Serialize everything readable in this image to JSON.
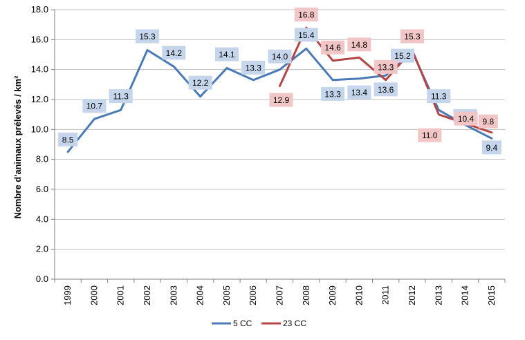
{
  "chart_data": {
    "type": "line",
    "title": "",
    "xlabel": "",
    "ylabel": "Nombre d'animaux prélevés / km²",
    "ylim": [
      0,
      18
    ],
    "yticks": [
      "0.0",
      "2.0",
      "4.0",
      "6.0",
      "8.0",
      "10.0",
      "12.0",
      "14.0",
      "16.0",
      "18.0"
    ],
    "categories": [
      "1999",
      "2000",
      "2001",
      "2002",
      "2003",
      "2004",
      "2005",
      "2006",
      "2007",
      "2008",
      "2009",
      "2010",
      "2011",
      "2012",
      "2013",
      "2014",
      "2015"
    ],
    "grid": "horizontal",
    "legend_position": "bottom",
    "series": [
      {
        "name": "5 CC",
        "color": "#4a7ab5",
        "label_bg": "#c5d5ec",
        "values": [
          8.5,
          10.7,
          11.3,
          15.3,
          14.2,
          12.2,
          14.1,
          13.3,
          14.0,
          15.4,
          13.3,
          13.4,
          13.6,
          15.2,
          11.3,
          10.3,
          9.4
        ],
        "labels": [
          "8.5",
          "10.7",
          "11.3",
          "15.3",
          "14.2",
          "12.2",
          "14.1",
          "13.3",
          "14.0",
          "15.4",
          "13.3",
          "13.4",
          "13.6",
          "15.2",
          "11.3",
          "10.3",
          "9.4"
        ]
      },
      {
        "name": "23 CC",
        "color": "#b54545",
        "label_bg": "#f2c6c6",
        "values": [
          null,
          null,
          null,
          null,
          null,
          null,
          null,
          null,
          12.9,
          16.8,
          14.6,
          14.8,
          13.3,
          15.3,
          11.0,
          10.4,
          9.8
        ],
        "labels": [
          null,
          null,
          null,
          null,
          null,
          null,
          null,
          null,
          "12.9",
          "16.8",
          "14.6",
          "14.8",
          "13.3",
          "15.3",
          "11.0",
          "10.4",
          "9.8"
        ]
      }
    ]
  }
}
